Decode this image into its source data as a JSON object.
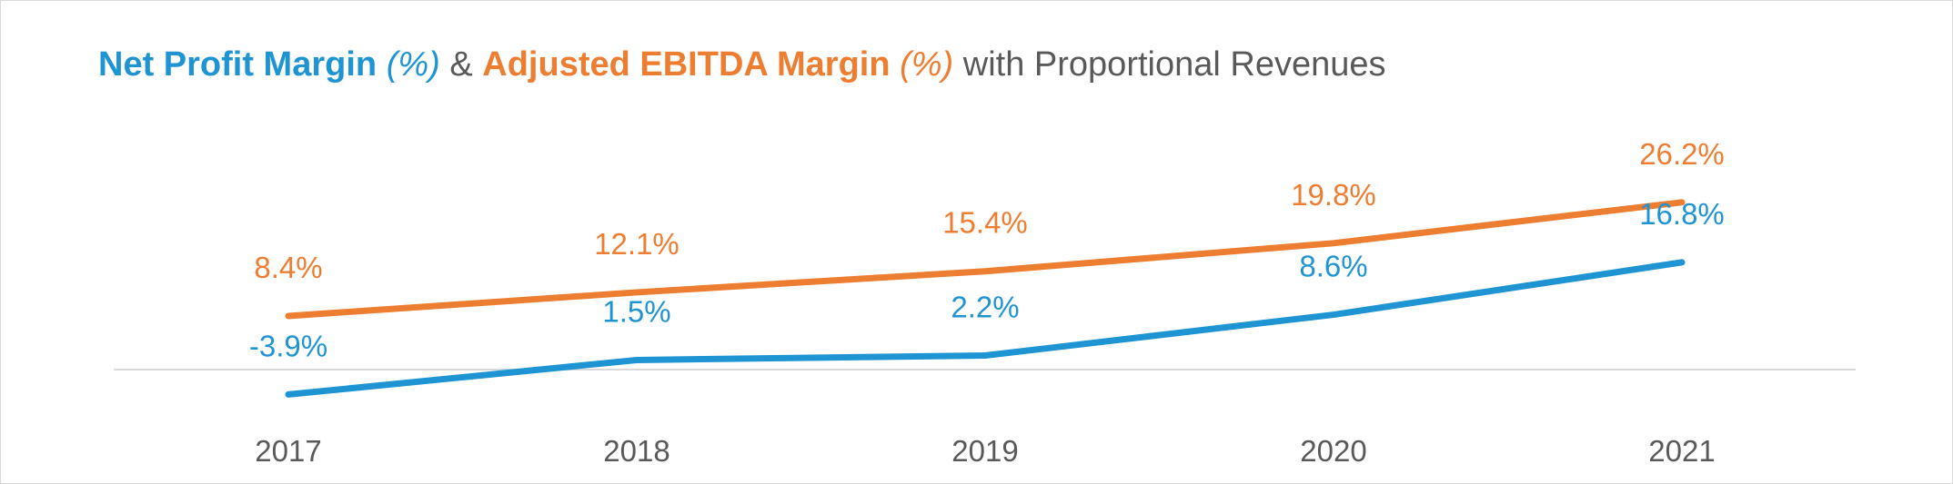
{
  "title": {
    "part1": "Net Profit Margin",
    "part1_unit": "(%)",
    "amp": "&",
    "part2": "Adjusted EBITDA Margin",
    "part2_unit": "(%)",
    "part3": "with Proportional Revenues"
  },
  "colors": {
    "net_profit": "#1f94d2",
    "ebitda": "#ed7d31",
    "axis": "#d9d9d9",
    "text": "#595959"
  },
  "chart_data": {
    "type": "line",
    "title": "Net Profit Margin (%) & Adjusted EBITDA Margin (%) with Proportional Revenues",
    "x": [
      "2017",
      "2018",
      "2019",
      "2020",
      "2021"
    ],
    "series": [
      {
        "name": "Adjusted EBITDA Margin (%)",
        "values": [
          8.4,
          12.1,
          15.4,
          19.8,
          26.2
        ],
        "labels": [
          "8.4%",
          "12.1%",
          "15.4%",
          "19.8%",
          "26.2%"
        ],
        "color": "#ed7d31"
      },
      {
        "name": "Net Profit Margin (%)",
        "values": [
          -3.9,
          1.5,
          2.2,
          8.6,
          16.8
        ],
        "labels": [
          "-3.9%",
          "1.5%",
          "2.2%",
          "8.6%",
          "16.8%"
        ],
        "color": "#1f94d2"
      }
    ],
    "baseline": 0,
    "grid": false,
    "legend": "none"
  }
}
